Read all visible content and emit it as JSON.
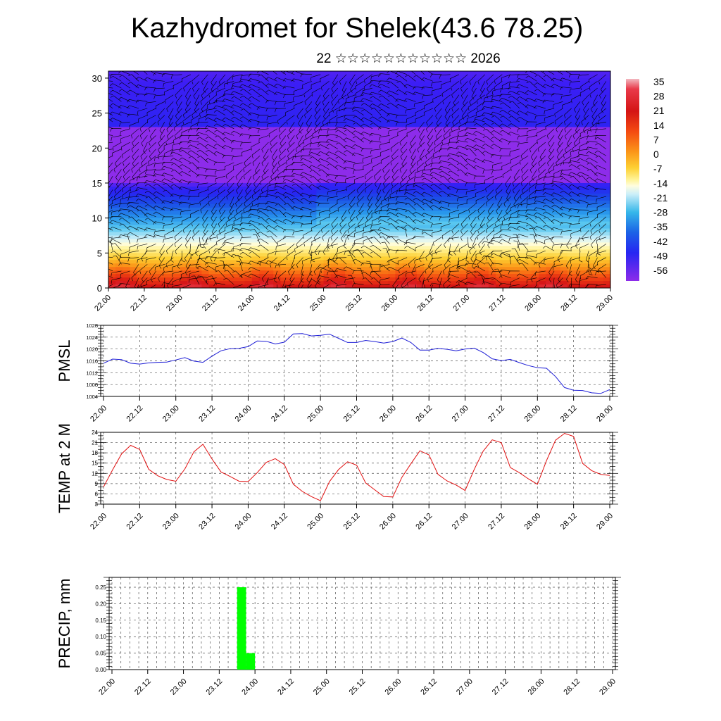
{
  "title": "Kazhydromet for Shelek(43.6 78.25)",
  "subtitle": "22 ☆☆☆☆☆☆☆☆☆☆☆ 2026",
  "colors": {
    "pmsl_line": "#1f1fd6",
    "temp_line": "#e01010",
    "precip_bar": "#00ff00",
    "grid": "#555555",
    "wind_barbs": "#000000"
  },
  "chart_data": [
    {
      "type": "heatmap",
      "name_hint": "vertical cross-section",
      "x_ticks": [
        "22.00",
        "22.12",
        "23.00",
        "23.12",
        "24.00",
        "24.12",
        "25.00",
        "25.12",
        "26.00",
        "26.12",
        "27.00",
        "27.12",
        "28.00",
        "28.12",
        "29.00"
      ],
      "y_ticks": [
        "0",
        "5",
        "10",
        "15",
        "20",
        "25",
        "30"
      ],
      "ylim": [
        0,
        31
      ],
      "colorbar_labels": [
        "35",
        "28",
        "21",
        "14",
        "7",
        "0",
        "-7",
        "-14",
        "-21",
        "-28",
        "-35",
        "-42",
        "-49",
        "-56"
      ],
      "overlay": "wind barbs"
    },
    {
      "type": "line",
      "ylabel": "PMSL",
      "ylim": [
        1004,
        1028
      ],
      "y_ticks": [
        "1004",
        "1008",
        "1012",
        "1016",
        "1020",
        "1024",
        "1028"
      ],
      "x_ticks": [
        "22.00",
        "22.12",
        "23.00",
        "23.12",
        "24.00",
        "24.12",
        "25.00",
        "25.12",
        "26.00",
        "26.12",
        "27.00",
        "27.12",
        "28.00",
        "28.12",
        "29.00"
      ],
      "values": [
        1015.2,
        1016.6,
        1016.4,
        1015.2,
        1014.9,
        1015.3,
        1015.5,
        1015.6,
        1016.3,
        1017.1,
        1015.9,
        1015.5,
        1017.6,
        1019.4,
        1020.1,
        1020.2,
        1020.8,
        1022.7,
        1022.6,
        1021.7,
        1022.3,
        1025.1,
        1025.2,
        1024.4,
        1024.6,
        1025.0,
        1023.6,
        1022.2,
        1022.2,
        1022.9,
        1022.5,
        1022.0,
        1022.5,
        1023.7,
        1022.2,
        1019.6,
        1019.6,
        1020.2,
        1019.9,
        1019.4,
        1020.0,
        1020.3,
        1018.8,
        1016.7,
        1016.1,
        1016.5,
        1015.4,
        1014.4,
        1013.7,
        1013.5,
        1010.7,
        1007.0,
        1006.1,
        1006.0,
        1005.2,
        1005.0,
        1006.3
      ]
    },
    {
      "type": "line",
      "ylabel": "TEMP at 2 M",
      "ylim": [
        3,
        24
      ],
      "y_ticks": [
        "3",
        "6",
        "9",
        "12",
        "15",
        "18",
        "21",
        "24"
      ],
      "x_ticks": [
        "22.00",
        "22.12",
        "23.00",
        "23.12",
        "24.00",
        "24.12",
        "25.00",
        "25.12",
        "26.00",
        "26.12",
        "27.00",
        "27.12",
        "28.00",
        "28.12",
        "29.00"
      ],
      "values": [
        8.0,
        13.0,
        17.7,
        20.2,
        19.0,
        13.2,
        11.3,
        10.2,
        9.7,
        13.3,
        18.3,
        20.5,
        16.2,
        12.4,
        11.1,
        9.7,
        9.6,
        12.2,
        15.2,
        16.3,
        14.6,
        8.8,
        6.7,
        5.2,
        4.0,
        9.6,
        13.1,
        15.4,
        14.4,
        9.2,
        7.2,
        5.2,
        5.1,
        10.8,
        14.8,
        18.6,
        17.4,
        11.7,
        9.8,
        8.6,
        7.0,
        13.1,
        18.5,
        21.8,
        21.0,
        13.7,
        12.2,
        10.4,
        8.8,
        15.7,
        21.7,
        23.7,
        22.8,
        14.9,
        12.8,
        11.7,
        11.4
      ]
    },
    {
      "type": "bar",
      "ylabel": "PRECIP, mm",
      "ylim": [
        0,
        0.28
      ],
      "y_ticks": [
        "0.00",
        "0.05",
        "0.10",
        "0.15",
        "0.20",
        "0.25"
      ],
      "x_ticks": [
        "22.00",
        "22.12",
        "23.00",
        "23.12",
        "24.00",
        "24.12",
        "25.00",
        "25.12",
        "26.00",
        "26.12",
        "27.00",
        "27.12",
        "28.00",
        "28.12",
        "29.00"
      ],
      "bars": [
        {
          "start_hour": 42,
          "end_hour": 45,
          "value": 0.25
        },
        {
          "start_hour": 45,
          "end_hour": 48,
          "value": 0.05
        }
      ]
    }
  ]
}
